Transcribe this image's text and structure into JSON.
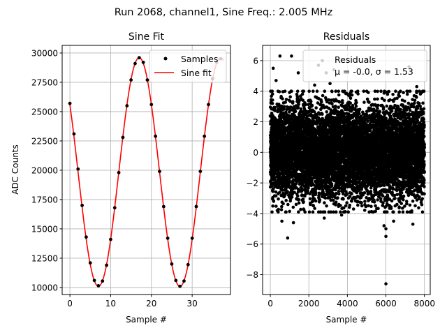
{
  "suptitle": "Run 2068, channel1, Sine Freq.: 2.005 MHz",
  "chart_data": [
    {
      "type": "line",
      "title": "Sine Fit",
      "xlabel": "Sample #",
      "ylabel": "ADC Counts",
      "xlim": [
        -1.9,
        39.4
      ],
      "ylim": [
        9400,
        30650
      ],
      "xticks": [
        "0",
        "10",
        "20",
        "30"
      ],
      "xtick_values": [
        0,
        10,
        20,
        30
      ],
      "yticks": [
        "10000",
        "12500",
        "15000",
        "17500",
        "20000",
        "22500",
        "25000",
        "27500",
        "30000"
      ],
      "ytick_values": [
        10000,
        12500,
        15000,
        17500,
        20000,
        22500,
        25000,
        27500,
        30000
      ],
      "grid": true,
      "legend_position": "top-right",
      "series": [
        {
          "name": "Samples",
          "style": "points",
          "color": "#000000",
          "x": [
            0,
            1,
            2,
            3,
            4,
            5,
            6,
            7,
            8,
            9,
            10,
            11,
            12,
            13,
            14,
            15,
            16,
            17,
            18,
            19,
            20,
            21,
            22,
            23,
            24,
            25,
            26,
            27,
            28,
            29,
            30,
            31,
            32,
            33,
            34,
            35,
            36,
            37
          ],
          "y": [
            25700,
            23100,
            20100,
            17000,
            14300,
            12100,
            10600,
            10150,
            10550,
            11900,
            14100,
            16800,
            19800,
            22800,
            25500,
            27700,
            29100,
            29600,
            29200,
            27700,
            25600,
            22900,
            19900,
            16900,
            14200,
            12000,
            10600,
            10100,
            10550,
            11950,
            14200,
            16900,
            19900,
            22900,
            25600,
            27800,
            29200,
            29500
          ]
        },
        {
          "name": "Sine fit",
          "style": "line",
          "color": "#ff0000",
          "fit": {
            "offset": 19850,
            "amplitude": 9750,
            "period_samples": 20,
            "peak_sample": 17,
            "x_range": [
              0,
              37.7
            ]
          }
        }
      ]
    },
    {
      "type": "scatter",
      "title": "Residuals",
      "xlabel": "Sample #",
      "ylabel": "",
      "xlim": [
        -400,
        8300
      ],
      "ylim": [
        -9.3,
        7.0
      ],
      "xticks": [
        "0",
        "2000",
        "4000",
        "6000",
        "8000"
      ],
      "xtick_values": [
        0,
        2000,
        4000,
        6000,
        8000
      ],
      "yticks": [
        "6",
        "4",
        "2",
        "0",
        "−2",
        "−4",
        "−6",
        "−8"
      ],
      "ytick_values": [
        6,
        4,
        2,
        0,
        -2,
        -4,
        -6,
        -8
      ],
      "grid": true,
      "legend_position": "top-right",
      "legend_title": "Residuals",
      "legend_stats": "μ = -0.0, σ = 1.53",
      "mu": -0.0,
      "sigma": 1.53,
      "n_points": 8000,
      "color": "#000000",
      "outliers": {
        "x": [
          150,
          500,
          1100,
          300,
          1450,
          2500,
          2900,
          2700,
          3300,
          3100,
          7200,
          7600,
          2300,
          900,
          6000,
          6000,
          6000,
          1200,
          7400,
          2800,
          600,
          3700,
          5900,
          6400,
          7900
        ],
        "y": [
          5.5,
          6.3,
          6.3,
          4.7,
          5.2,
          5.7,
          5.2,
          6.0,
          5.4,
          4.5,
          5.6,
          4.3,
          4.4,
          -5.6,
          -5.5,
          -8.6,
          -5.0,
          -4.6,
          -4.7,
          -4.3,
          -4.5,
          -4.1,
          -4.8,
          -4.5,
          -3.9
        ]
      }
    }
  ]
}
